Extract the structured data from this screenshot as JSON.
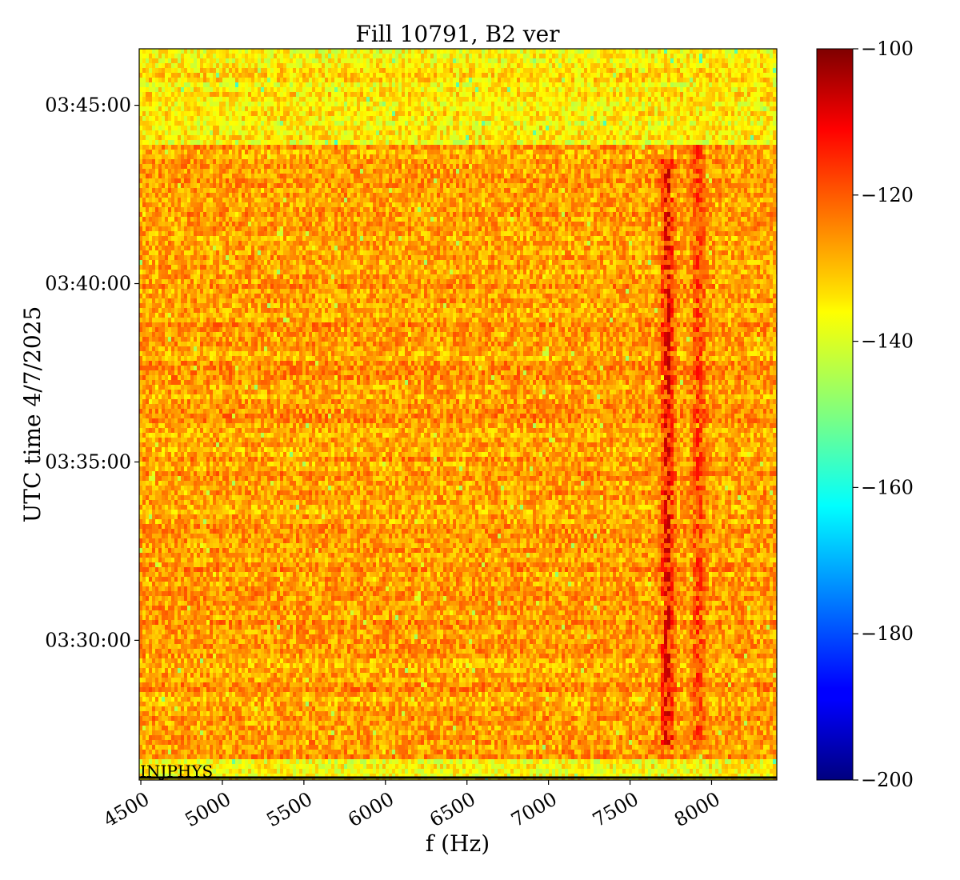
{
  "chart_data": {
    "type": "heatmap",
    "title": "Fill 10791, B2 ver",
    "xlabel": "f (Hz)",
    "ylabel": "UTC time 4/7/2025",
    "xlim": [
      4490,
      8400
    ],
    "x_ticks": [
      4500,
      5000,
      5500,
      6000,
      6500,
      7000,
      7500,
      8000
    ],
    "x_tick_labels": [
      "4500",
      "5000",
      "5500",
      "6000",
      "6500",
      "7000",
      "7500",
      "8000"
    ],
    "ylim": [
      "03:26:05",
      "03:46:35"
    ],
    "y_ticks": [
      "03:30:00",
      "03:35:00",
      "03:40:00",
      "03:45:00"
    ],
    "y_tick_labels": [
      "03:30:00",
      "03:35:00",
      "03:40:00",
      "03:45:00"
    ],
    "colorbar": {
      "colormap": "jet",
      "range": [
        -200,
        -100
      ],
      "ticks": [
        -100,
        -120,
        -140,
        -160,
        -180,
        -200
      ],
      "tick_labels": [
        "−100",
        "−120",
        "−140",
        "−160",
        "−180",
        "−200"
      ]
    },
    "annotation": {
      "text": "INJPHYS",
      "time": "03:26:10",
      "frequency": 4500
    },
    "regions": [
      {
        "from": "03:26:05",
        "to": "03:26:40",
        "mean_level": -138
      },
      {
        "from": "03:26:40",
        "to": "03:43:50",
        "mean_level": -128
      },
      {
        "from": "03:43:50",
        "to": "03:46:35",
        "mean_level": -136
      }
    ],
    "features": [
      {
        "frequency": 7730,
        "from": "03:27:00",
        "to": "03:43:30",
        "peak_level": -103
      },
      {
        "frequency": 7920,
        "from": "03:27:00",
        "to": "03:43:50",
        "peak_level": -112
      }
    ]
  }
}
